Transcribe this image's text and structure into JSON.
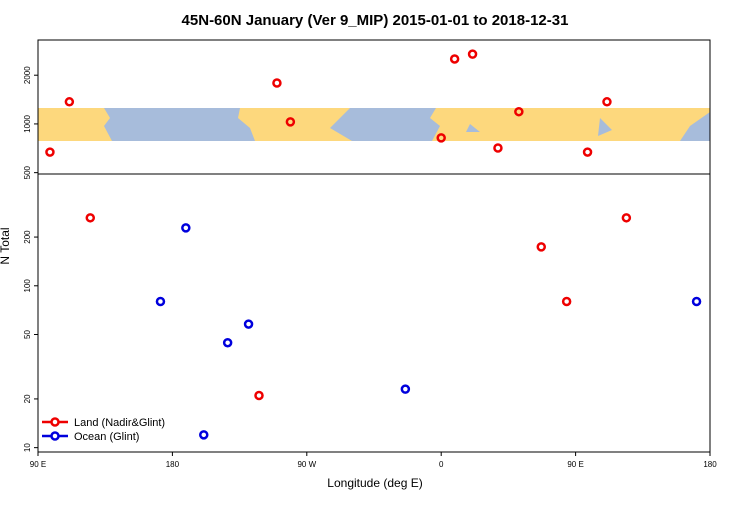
{
  "chart_data": {
    "type": "scatter",
    "title": "45N-60N January (Ver 9_MIP)   2015-01-01 to 2018-12-31",
    "x_label": "Longitude (deg E)",
    "y_label": "N Total",
    "xlim": [
      90,
      540
    ],
    "ylim": [
      9.4,
      3300
    ],
    "log_y": true,
    "legend": "bottom-left",
    "xticks": [
      {
        "value": 90,
        "label": "90 E"
      },
      180,
      {
        "value": 270,
        "label": "90 W"
      },
      {
        "value": 360,
        "label": "0"
      },
      {
        "value": 450,
        "label": "90 E"
      },
      {
        "value": 540,
        "label": "180"
      }
    ],
    "yticks": [
      10,
      20,
      50,
      100,
      200,
      500,
      1000,
      2000
    ],
    "series": [
      {
        "name": "Land (Nadir&Glint)",
        "color": "#ee0000",
        "x": [
          98,
          111,
          125,
          250,
          259,
          238,
          360,
          369,
          381,
          398,
          412,
          427,
          444,
          458,
          471,
          484
        ],
        "values": [
          670,
          1370,
          263,
          1790,
          1030,
          21,
          820,
          2520,
          2700,
          710,
          1190,
          174,
          80,
          670,
          1370,
          263
        ]
      },
      {
        "name": "Ocean (Glint)",
        "color": "#0000dd",
        "x": [
          172,
          189,
          201,
          217,
          231,
          336,
          531
        ],
        "values": [
          80,
          228,
          12,
          44.5,
          58,
          23,
          80
        ]
      }
    ]
  }
}
